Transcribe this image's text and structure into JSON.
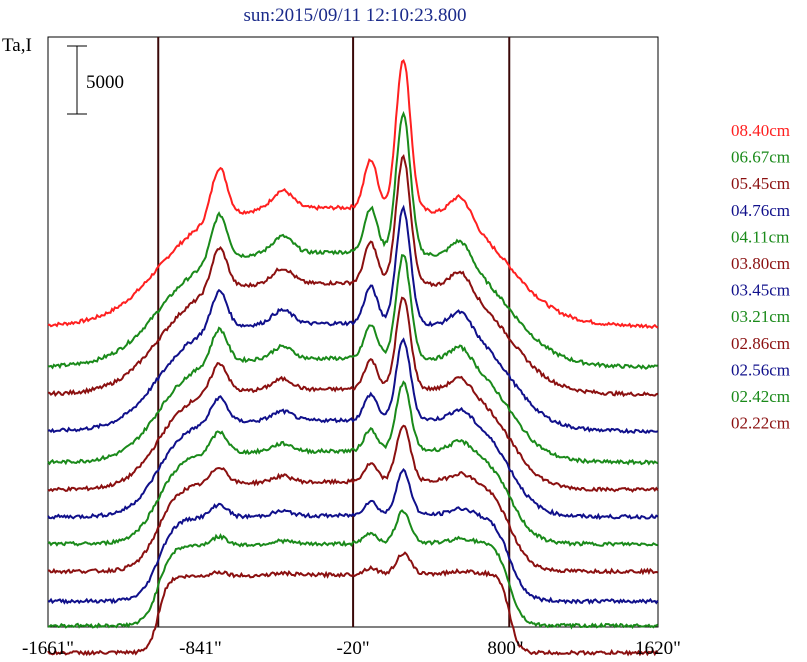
{
  "chart_data": {
    "type": "line",
    "title": "sun:2015/09/11 12:10:23.800",
    "ylabel": "Ta,I",
    "scale_bar_label": "5000",
    "scale_bar_value": 5000,
    "x_ticks": [
      {
        "value": -1661,
        "label": "-1661\""
      },
      {
        "value": -841,
        "label": "-841\""
      },
      {
        "value": -20,
        "label": "-20\""
      },
      {
        "value": 800,
        "label": "800\""
      },
      {
        "value": 1620,
        "label": "1620\""
      }
    ],
    "xlim": [
      -1661,
      1620
    ],
    "vertical_lines": [
      -1068,
      -20,
      820
    ],
    "grid": false,
    "legend_position": "right",
    "series": [
      {
        "name": "08.40cm",
        "color": "#ff2020",
        "offset": 21000
      },
      {
        "name": "06.67cm",
        "color": "#1a8a1a",
        "offset": 18000
      },
      {
        "name": "05.45cm",
        "color": "#8b1010",
        "offset": 16000
      },
      {
        "name": "04.76cm",
        "color": "#10108b",
        "offset": 13300
      },
      {
        "name": "04.11cm",
        "color": "#1a8a1a",
        "offset": 11000
      },
      {
        "name": "03.80cm",
        "color": "#8b1010",
        "offset": 9000
      },
      {
        "name": "03.45cm",
        "color": "#10108b",
        "offset": 7000
      },
      {
        "name": "03.21cm",
        "color": "#1a8a1a",
        "offset": 5000
      },
      {
        "name": "02.86cm",
        "color": "#8b1010",
        "offset": 3000
      },
      {
        "name": "02.56cm",
        "color": "#10108b",
        "offset": 800
      },
      {
        "name": "02.42cm",
        "color": "#1a8a1a",
        "offset": -1000
      },
      {
        "name": "02.22cm",
        "color": "#8b1010",
        "offset": -3000
      }
    ]
  }
}
